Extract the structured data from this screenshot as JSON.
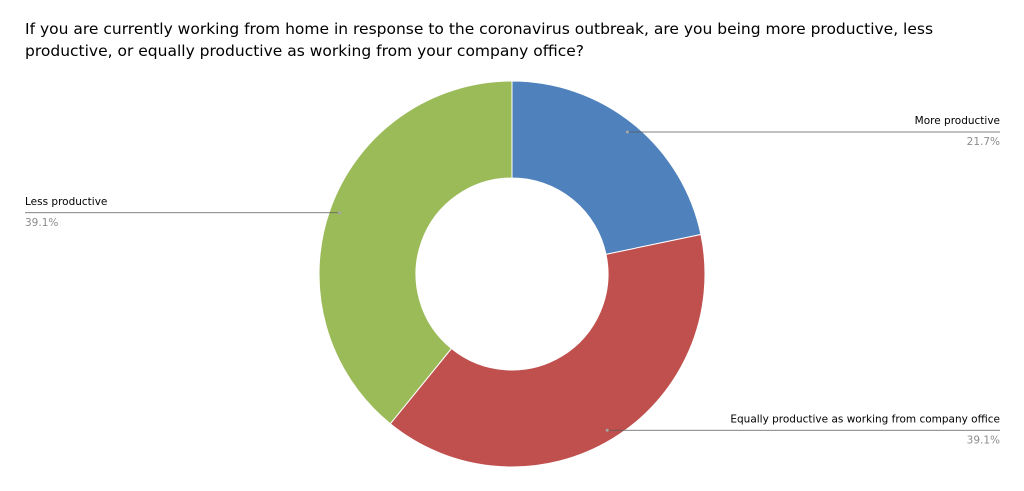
{
  "chart_data": {
    "type": "donut",
    "title": "If you are currently working from home in response to the coronavirus outbreak, are you being more productive, less productive, or equally productive as working from your company office?",
    "categories": [
      "More productive",
      "Equally productive as working from company office",
      "Less productive"
    ],
    "values": [
      21.7,
      39.1,
      39.1
    ],
    "value_labels": [
      "21.7%",
      "39.1%",
      "39.1%"
    ],
    "colors": [
      "#4f81bd",
      "#c0504d",
      "#9bbb59"
    ]
  }
}
